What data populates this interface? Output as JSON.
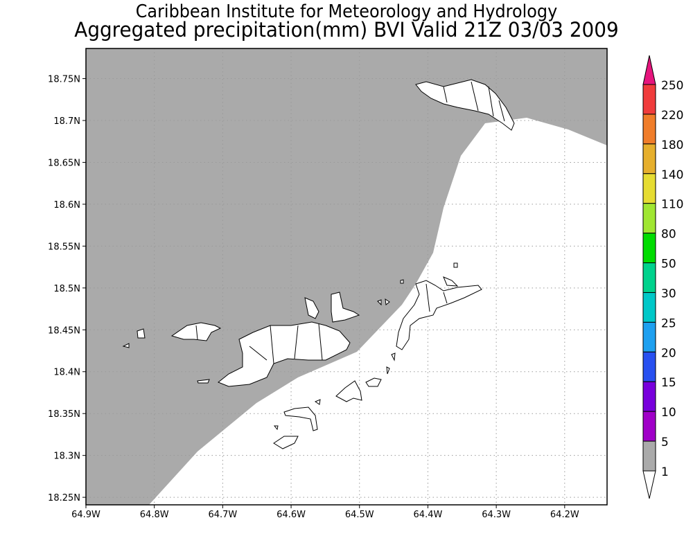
{
  "title": {
    "line1": "Caribbean Institute for Meteorology and Hydrology",
    "line2": "Aggregated precipitation(mm) BVI Valid 21Z 03/03 2009"
  },
  "chart_data": {
    "type": "heatmap",
    "title": "Aggregated precipitation(mm) BVI Valid 21Z 03/03 2009",
    "variable": "Aggregated precipitation (mm)",
    "xlim": [
      -64.9,
      -64.138
    ],
    "ylim": [
      18.241,
      18.786
    ],
    "grid": true,
    "x_ticks": [
      {
        "value": -64.9,
        "label": "64.9W"
      },
      {
        "value": -64.8,
        "label": "64.8W"
      },
      {
        "value": -64.7,
        "label": "64.7W"
      },
      {
        "value": -64.6,
        "label": "64.6W"
      },
      {
        "value": -64.5,
        "label": "64.5W"
      },
      {
        "value": -64.4,
        "label": "64.4W"
      },
      {
        "value": -64.3,
        "label": "64.3W"
      },
      {
        "value": -64.2,
        "label": "64.2W"
      }
    ],
    "y_ticks": [
      {
        "value": 18.75,
        "label": "18.75N"
      },
      {
        "value": 18.7,
        "label": "18.7N"
      },
      {
        "value": 18.65,
        "label": "18.65N"
      },
      {
        "value": 18.6,
        "label": "18.6N"
      },
      {
        "value": 18.55,
        "label": "18.55N"
      },
      {
        "value": 18.5,
        "label": "18.5N"
      },
      {
        "value": 18.45,
        "label": "18.45N"
      },
      {
        "value": 18.4,
        "label": "18.4N"
      },
      {
        "value": 18.35,
        "label": "18.35N"
      },
      {
        "value": 18.3,
        "label": "18.3N"
      },
      {
        "value": 18.25,
        "label": "18.25N"
      }
    ],
    "precip_regions": [
      {
        "range": "1-5",
        "area": "northwest of a line from (-64.82,18.24) to (-64.14,18.67)"
      },
      {
        "range": "<1",
        "area": "southeast remainder"
      }
    ],
    "colorbar": {
      "placement": "right",
      "labels": [
        "250",
        "220",
        "180",
        "140",
        "110",
        "80",
        "50",
        "30",
        "25",
        "20",
        "15",
        "10",
        "5",
        "1"
      ],
      "over_color": "#e6157d",
      "under_color": "#ffffff",
      "colors": [
        "#f03c3c",
        "#f07d2a",
        "#e6af2d",
        "#e6dc32",
        "#a0e632",
        "#00dc00",
        "#00d28c",
        "#00c8c8",
        "#1ea0f0",
        "#2850f0",
        "#7800dc",
        "#a000c8",
        "#aaaaaa"
      ]
    }
  }
}
